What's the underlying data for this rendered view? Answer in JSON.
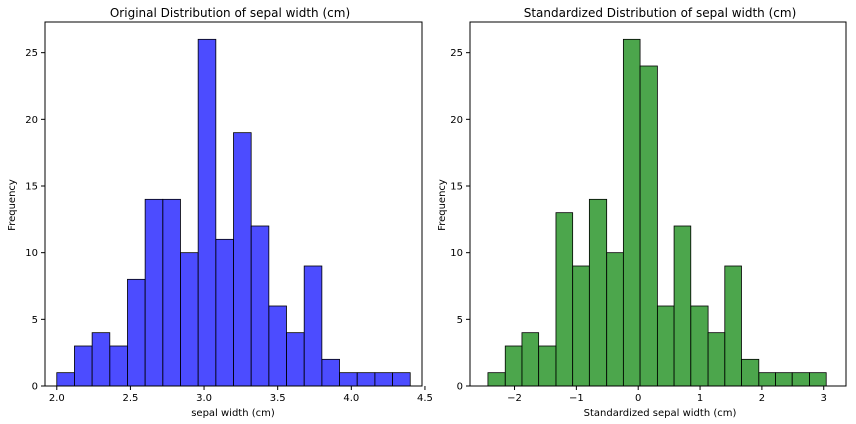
{
  "chart_data": [
    {
      "type": "bar",
      "title": "Original Distribution of sepal width (cm)",
      "xlabel": "sepal width (cm)",
      "ylabel": "Frequency",
      "bar_color": "#0000ff",
      "edge_color": "#000000",
      "xlim": [
        1.92,
        4.48
      ],
      "ylim": [
        0,
        27.3
      ],
      "xticks": [
        2.0,
        2.5,
        3.0,
        3.5,
        4.0,
        4.5
      ],
      "xtick_labels": [
        "2.0",
        "2.5",
        "3.0",
        "3.5",
        "4.0",
        "4.5"
      ],
      "yticks": [
        0,
        5,
        10,
        15,
        20,
        25
      ],
      "ytick_labels": [
        "0",
        "5",
        "10",
        "15",
        "20",
        "25"
      ],
      "bin_edges": [
        2.0,
        2.12,
        2.24,
        2.36,
        2.48,
        2.6,
        2.72,
        2.84,
        2.96,
        3.08,
        3.2,
        3.32,
        3.44,
        3.56,
        3.68,
        3.8,
        3.92,
        4.04,
        4.16,
        4.28,
        4.4
      ],
      "values": [
        1,
        3,
        4,
        3,
        8,
        14,
        14,
        10,
        26,
        11,
        19,
        12,
        6,
        4,
        9,
        2,
        1,
        1,
        1,
        1
      ],
      "grid": false
    },
    {
      "type": "bar",
      "title": "Standardized Distribution of sepal width (cm)",
      "xlabel": "Standardized sepal width (cm)",
      "ylabel": "Frequency",
      "bar_color": "#008000",
      "edge_color": "#000000",
      "xlim": [
        -2.72,
        3.36
      ],
      "ylim": [
        0,
        27.3
      ],
      "xticks": [
        -2,
        -1,
        0,
        1,
        2,
        3
      ],
      "xtick_labels": [
        "−2",
        "−1",
        "0",
        "1",
        "2",
        "3"
      ],
      "yticks": [
        0,
        5,
        10,
        15,
        20,
        25
      ],
      "ytick_labels": [
        "0",
        "5",
        "10",
        "15",
        "20",
        "25"
      ],
      "bin_edges": [
        -2.43,
        -2.15,
        -1.88,
        -1.61,
        -1.33,
        -1.06,
        -0.79,
        -0.51,
        -0.24,
        0.03,
        0.31,
        0.58,
        0.85,
        1.13,
        1.4,
        1.67,
        1.95,
        2.22,
        2.49,
        2.77,
        3.04
      ],
      "values": [
        1,
        3,
        4,
        3,
        13,
        9,
        14,
        10,
        26,
        24,
        6,
        12,
        6,
        4,
        9,
        2,
        1,
        1,
        1,
        1
      ],
      "grid": false
    }
  ]
}
